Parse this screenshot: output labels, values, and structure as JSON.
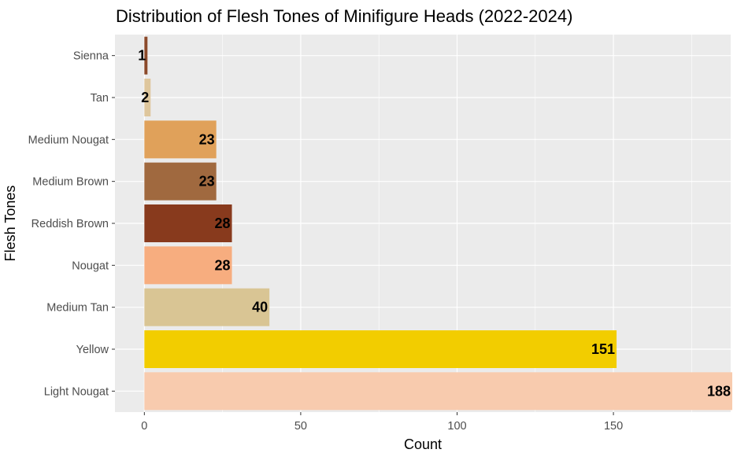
{
  "chart_data": {
    "type": "bar",
    "orientation": "horizontal",
    "title": "Distribution of Flesh Tones of Minifigure Heads (2022-2024)",
    "xlabel": "Count",
    "ylabel": "Flesh Tones",
    "xlim": [
      -9.4,
      187.5
    ],
    "xticks": [
      0,
      50,
      100,
      150
    ],
    "grid": true,
    "legend": "none",
    "categories": [
      "Sienna",
      "Tan",
      "Medium Nougat",
      "Medium Brown",
      "Reddish Brown",
      "Nougat",
      "Medium Tan",
      "Yellow",
      "Light Nougat"
    ],
    "values": [
      1,
      2,
      23,
      23,
      28,
      28,
      40,
      151,
      188
    ],
    "data_labels": [
      "1",
      "2",
      "23",
      "23",
      "28",
      "28",
      "40",
      "151",
      "188"
    ],
    "colors": [
      "#8B4A2B",
      "#DEC69C",
      "#E0A15A",
      "#A0693F",
      "#883A1D",
      "#F7AD7F",
      "#D9C594",
      "#F2CD00",
      "#F8CBAE"
    ],
    "panel_background": "#EBEBEB",
    "gridline_color": "#FFFFFF"
  }
}
